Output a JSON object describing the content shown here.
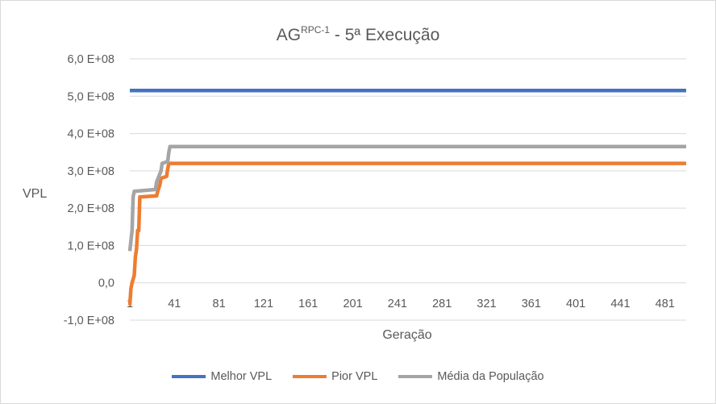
{
  "chart_data": {
    "type": "line",
    "title": {
      "main": "AG",
      "sup": "RPC-1",
      "rest": " - 5ª Execução"
    },
    "xlabel": "Geração",
    "ylabel": "VPL",
    "x_ticks": [
      "1",
      "41",
      "81",
      "121",
      "161",
      "201",
      "241",
      "281",
      "321",
      "361",
      "401",
      "441",
      "481"
    ],
    "xlim": [
      1,
      500
    ],
    "ylim": [
      -100000000,
      600000000
    ],
    "y_ticks": [
      {
        "value": 600000000,
        "label": "6,0 E+08"
      },
      {
        "value": 500000000,
        "label": "5,0 E+08"
      },
      {
        "value": 400000000,
        "label": "4,0 E+08"
      },
      {
        "value": 300000000,
        "label": "3,0 E+08"
      },
      {
        "value": 200000000,
        "label": "2,0 E+08"
      },
      {
        "value": 100000000,
        "label": "1,0 E+08"
      },
      {
        "value": 0,
        "label": "0,0"
      },
      {
        "value": -100000000,
        "label": "-1,0 E+08"
      }
    ],
    "grid": "horizontal",
    "legend_position": "bottom",
    "series": [
      {
        "name": "Melhor VPL",
        "color": "#4472C4",
        "points": [
          [
            1,
            515000000
          ],
          [
            500,
            515000000
          ]
        ]
      },
      {
        "name": "Pior VPL",
        "color": "#ED7D31",
        "points": [
          [
            1,
            -60000000
          ],
          [
            2,
            -15000000
          ],
          [
            3,
            0
          ],
          [
            5,
            20000000
          ],
          [
            6,
            70000000
          ],
          [
            7,
            90000000
          ],
          [
            8,
            140000000
          ],
          [
            9,
            140000000
          ],
          [
            10,
            230000000
          ],
          [
            25,
            233000000
          ],
          [
            26,
            245000000
          ],
          [
            28,
            262000000
          ],
          [
            29,
            280000000
          ],
          [
            34,
            285000000
          ],
          [
            35,
            305000000
          ],
          [
            36,
            320000000
          ],
          [
            500,
            320000000
          ]
        ]
      },
      {
        "name": "Média da População",
        "color": "#A5A5A5",
        "points": [
          [
            1,
            85000000
          ],
          [
            3,
            140000000
          ],
          [
            4,
            230000000
          ],
          [
            5,
            245000000
          ],
          [
            24,
            250000000
          ],
          [
            25,
            270000000
          ],
          [
            27,
            285000000
          ],
          [
            29,
            300000000
          ],
          [
            30,
            320000000
          ],
          [
            35,
            325000000
          ],
          [
            36,
            350000000
          ],
          [
            37,
            365000000
          ],
          [
            500,
            365000000
          ]
        ]
      }
    ]
  }
}
